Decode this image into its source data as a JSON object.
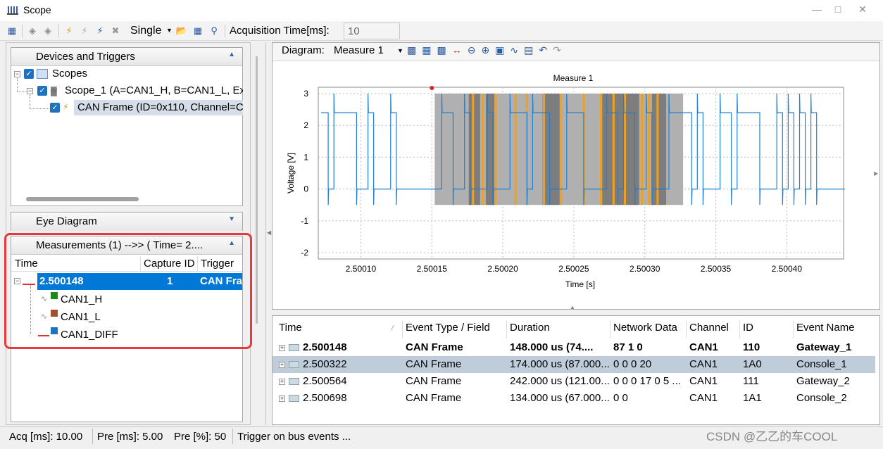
{
  "window": {
    "title": "Scope"
  },
  "toolbar": {
    "trigger_mode": "Single",
    "acq_time_label": "Acquisition Time[ms]:",
    "acq_time_value": "10"
  },
  "devices_panel": {
    "title": "Devices and Triggers",
    "items": [
      {
        "label": "Scopes"
      },
      {
        "label": "Scope_1 (A=CAN1_H, B=CAN1_L, Ext"
      },
      {
        "label": "CAN Frame (ID=0x110, Channel=C"
      }
    ]
  },
  "eye_panel": {
    "title": "Eye Diagram"
  },
  "measure_panel": {
    "title": "Measurements (1)  -->> ( Time= 2....",
    "columns": [
      "Time",
      "Capture ID",
      "Trigger"
    ],
    "row": {
      "time": "2.500148",
      "capture_id": "1",
      "trigger": "CAN Fra"
    },
    "signals": [
      {
        "label": "CAN1_H",
        "color": "#1a8a1a"
      },
      {
        "label": "CAN1_L",
        "color": "#a0522d"
      },
      {
        "label": "CAN1_DIFF",
        "color": "#1e73be"
      }
    ]
  },
  "diagram": {
    "label": "Diagram:",
    "selected": "Measure 1"
  },
  "chart_data": {
    "type": "line",
    "title": "Measure 1",
    "xlabel": "Time [s]",
    "ylabel": "Voltage [V]",
    "x_ticks": [
      "2.50010",
      "2.50015",
      "2.50020",
      "2.50025",
      "2.50030",
      "2.50035",
      "2.50040"
    ],
    "y_ticks": [
      "3",
      "2",
      "1",
      "0",
      "-1",
      "-2"
    ],
    "xlim": [
      2.50007,
      2.50044
    ],
    "ylim": [
      -2.2,
      3.2
    ],
    "grid": true,
    "series": [
      {
        "color": "#1e7fd6",
        "high": 2.4,
        "low": 0.0,
        "spike_high": 3.0,
        "spike_low": -0.5
      }
    ],
    "highlight_range": [
      2.500152,
      2.500327
    ],
    "marker_x": 2.50015,
    "orange_lines": [
      2.500179,
      2.500186,
      2.500195,
      2.500209,
      2.500217,
      2.500229,
      2.500241,
      2.500257,
      2.500269,
      2.500278,
      2.500286,
      2.500298,
      2.500303,
      2.500309
    ]
  },
  "event_table": {
    "columns": [
      "Time",
      "Event Type / Field",
      "Duration",
      "Network Data",
      "Channel",
      "ID",
      "Event Name"
    ],
    "rows": [
      {
        "time": "2.500148",
        "type": "CAN Frame",
        "duration": "148.000 us (74....",
        "data": "87 1 0",
        "channel": "CAN1",
        "id": "110",
        "name": "Gateway_1",
        "bold": true,
        "selected": false
      },
      {
        "time": "2.500322",
        "type": "CAN Frame",
        "duration": "174.000 us (87.000...",
        "data": "0 0 0 20",
        "channel": "CAN1",
        "id": "1A0",
        "name": "Console_1",
        "bold": false,
        "selected": true
      },
      {
        "time": "2.500564",
        "type": "CAN Frame",
        "duration": "242.000 us (121.00...",
        "data": "0 0 0 17 0 5 ...",
        "channel": "CAN1",
        "id": "111",
        "name": "Gateway_2",
        "bold": false,
        "selected": false
      },
      {
        "time": "2.500698",
        "type": "CAN Frame",
        "duration": "134.000 us (67.000...",
        "data": "0 0",
        "channel": "CAN1",
        "id": "1A1",
        "name": "Console_2",
        "bold": false,
        "selected": false
      }
    ]
  },
  "status": {
    "acq": "Acq [ms]: 10.00",
    "pre_ms": "Pre [ms]:  5.00",
    "pre_pct": "Pre [%]:  50",
    "trigger": "Trigger on bus events ..."
  },
  "watermark": "CSDN @乙乙的车COOL"
}
